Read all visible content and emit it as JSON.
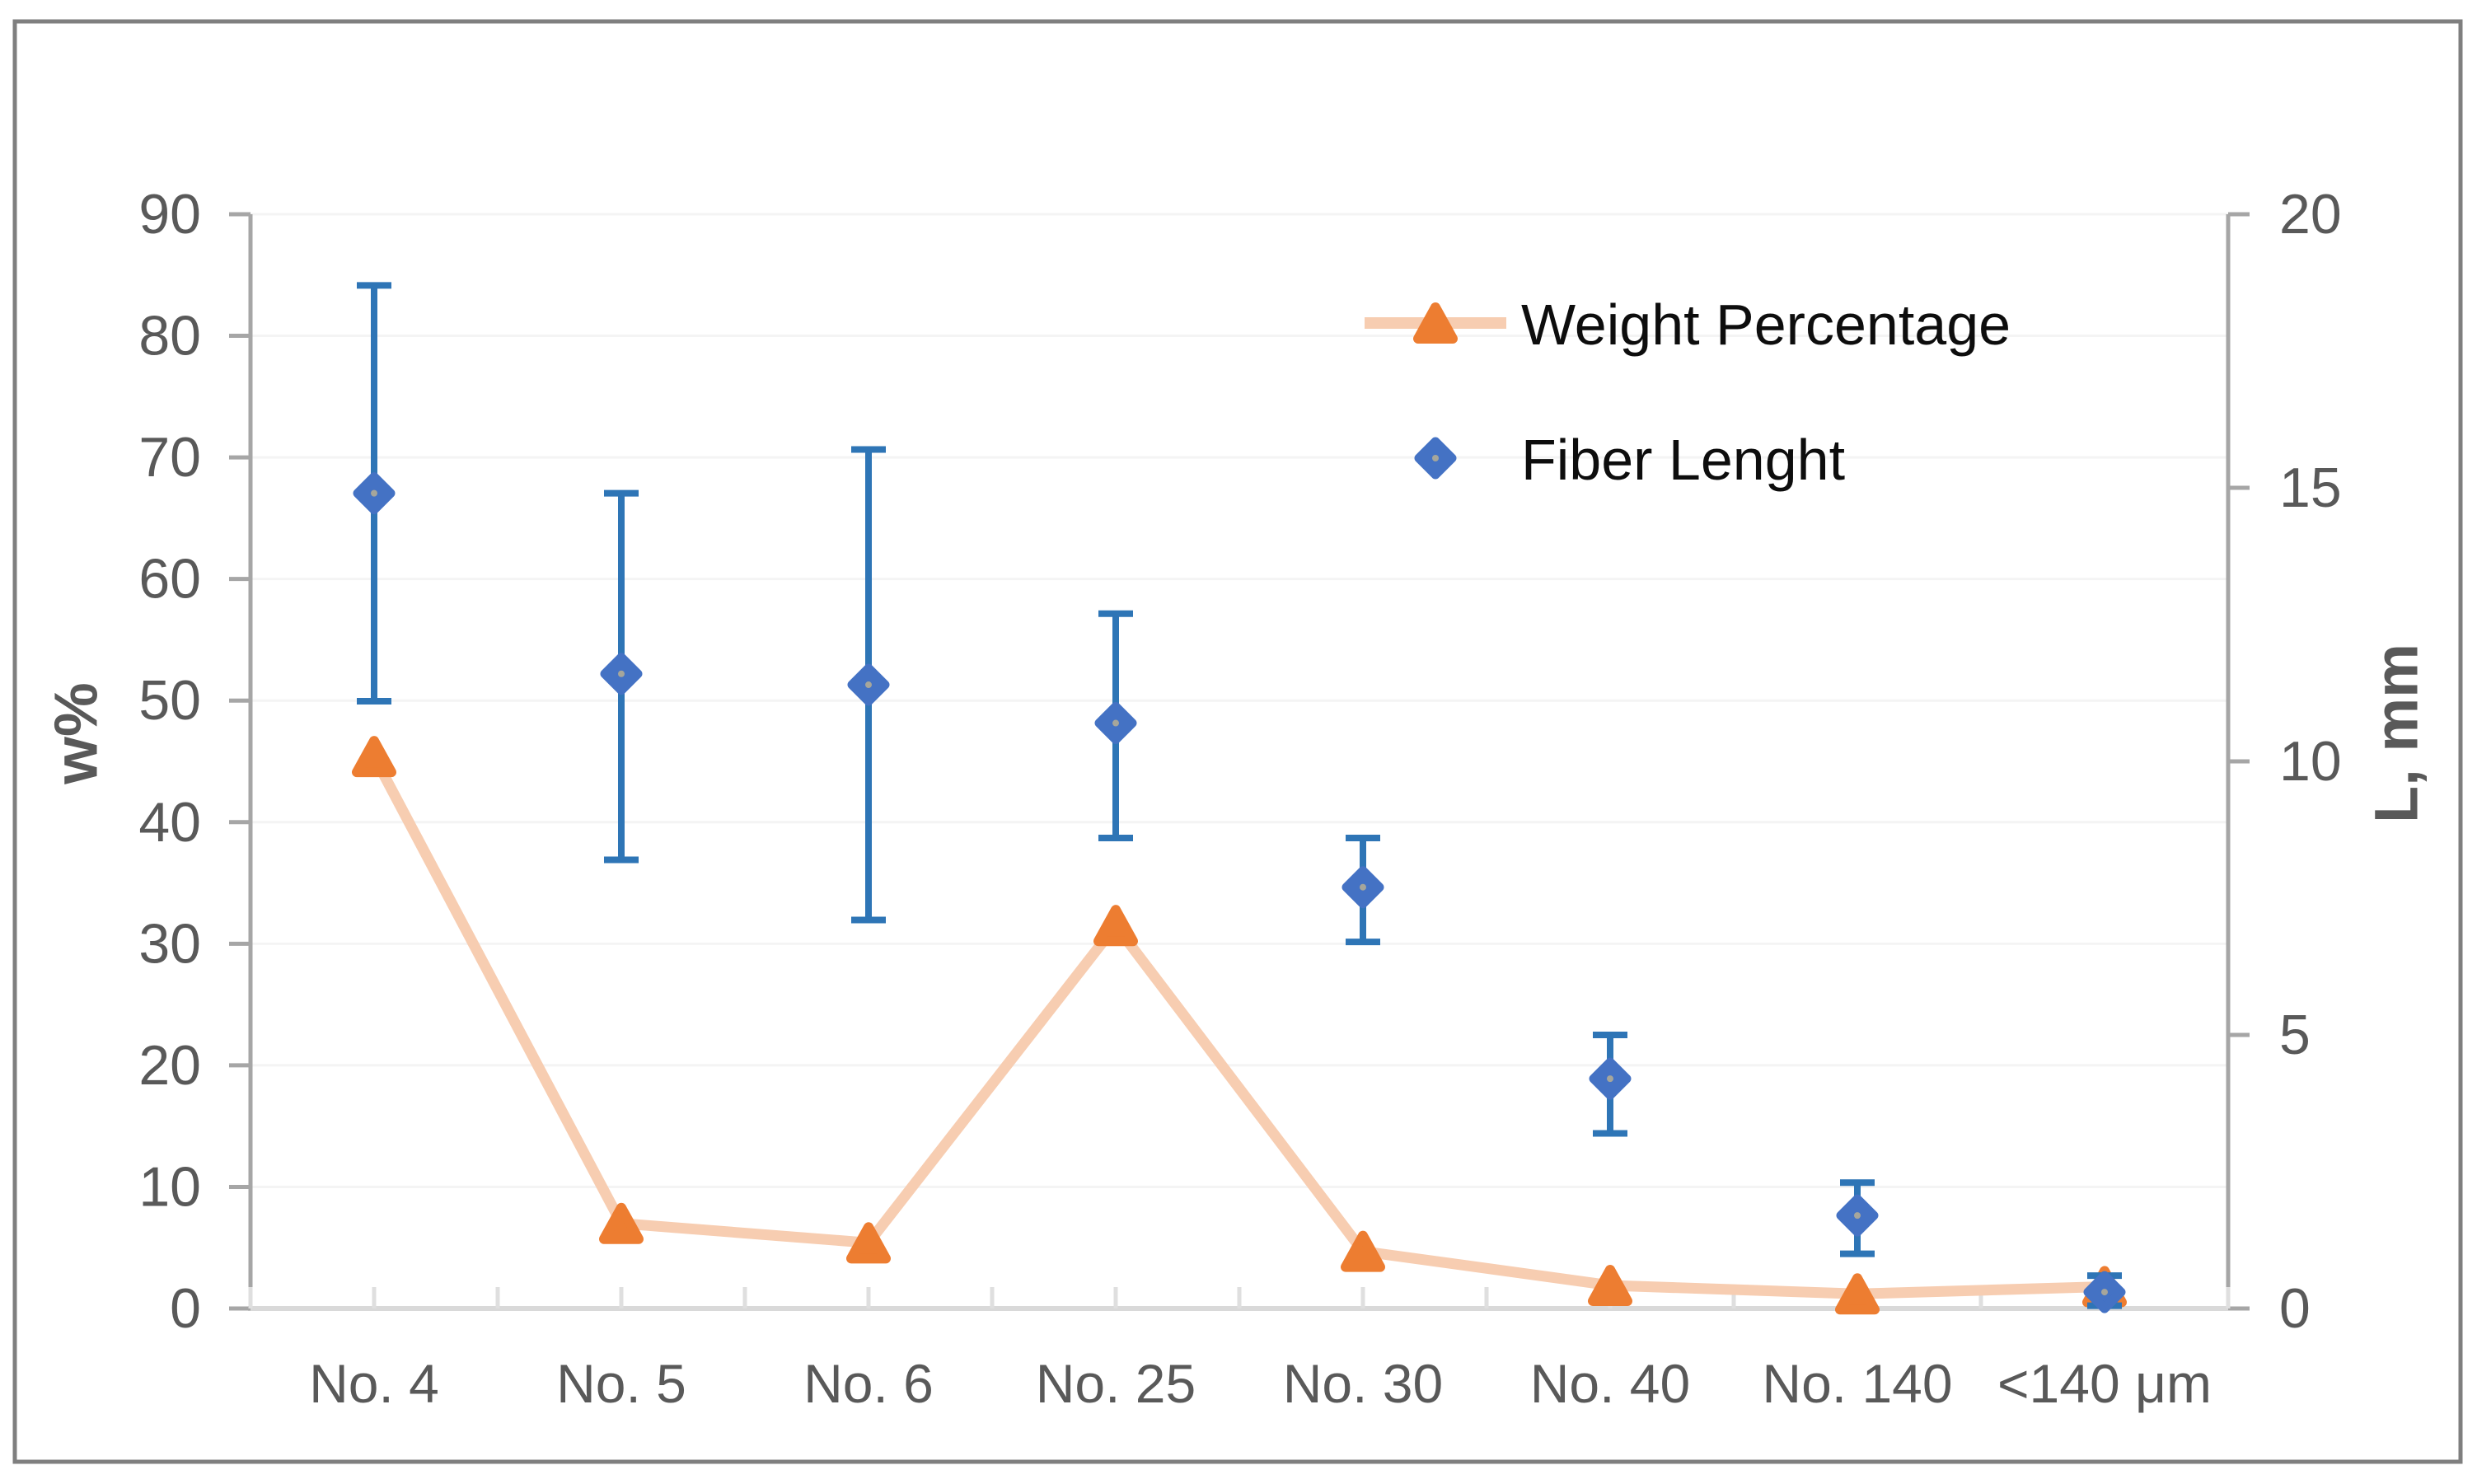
{
  "chart_data": {
    "type": "line+scatter-dual-axis",
    "categories": [
      "No. 4",
      "No. 5",
      "No. 6",
      "No. 25",
      "No. 30",
      "No. 40",
      "No. 140",
      "<140 μm"
    ],
    "series": [
      {
        "name": "Weight Percentage",
        "axis": "left",
        "marker": "triangle",
        "marker_color": "#ED7D31",
        "line_color": "#F7CDB1",
        "values": [
          45.4,
          7.0,
          5.4,
          31.5,
          4.7,
          1.9,
          1.2,
          1.8
        ]
      },
      {
        "name": "Fiber Lenght",
        "axis": "right",
        "marker": "diamond",
        "marker_color": "#4472C4",
        "error_bar_color": "#2E75B6",
        "values_mm": [
          14.9,
          11.6,
          11.4,
          10.7,
          7.7,
          4.2,
          1.7,
          0.3
        ],
        "error_low_mm": [
          11.1,
          8.2,
          7.1,
          8.6,
          6.7,
          3.2,
          1.0,
          0.05
        ],
        "error_high_mm": [
          18.7,
          14.9,
          15.7,
          12.7,
          8.6,
          5.0,
          2.3,
          0.6
        ]
      }
    ],
    "left_axis": {
      "title": "w%",
      "min": 0,
      "max": 90,
      "step": 10
    },
    "right_axis": {
      "title": "L, mm",
      "min": 0,
      "max": 20,
      "step": 5
    },
    "x_axis": {
      "tick_labels": [
        "No. 4",
        "No. 5",
        "No. 6",
        "No. 25",
        "No. 30",
        "No. 40",
        "No. 140",
        "<140 μm"
      ]
    },
    "legend": {
      "position": "upper-right-inside",
      "entries": [
        "Weight Percentage",
        "Fiber Lenght"
      ]
    },
    "grid": "horizontal-major",
    "colors": {
      "accent_orange": "#ED7D31",
      "accent_orange_light": "#F7CDB1",
      "accent_blue": "#4472C4",
      "error_bar_blue": "#2E75B6",
      "axis_line": "#A6A6A6",
      "bottom_axis_line": "#D9D9D9",
      "gridline": "#F4F4F4",
      "tick_label_text": "#595959",
      "legend_text": "#0D0D0D",
      "border": "#7F7F7F"
    }
  }
}
